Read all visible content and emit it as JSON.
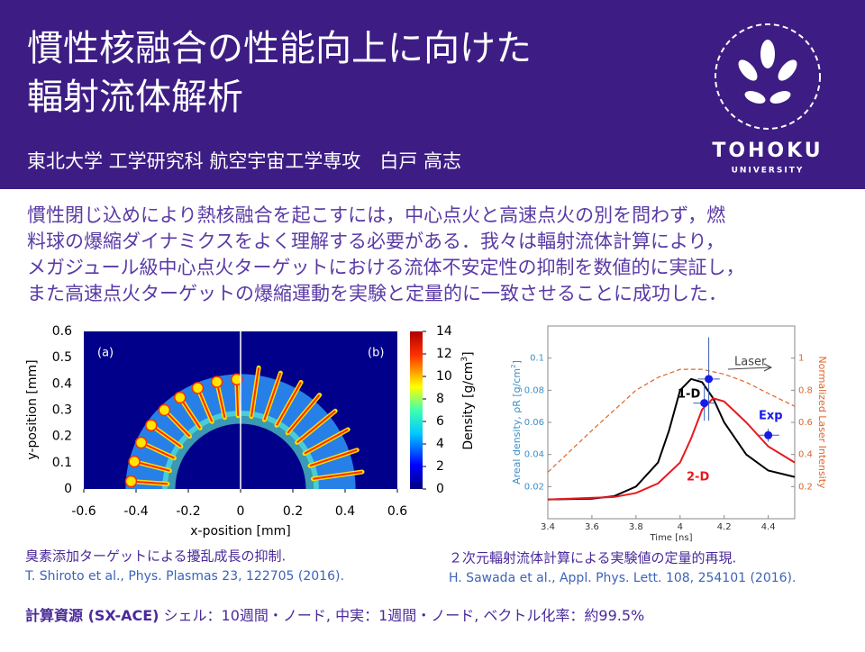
{
  "header": {
    "title_lines": [
      "慣性核融合の性能向上に向けた",
      "輻射流体解析"
    ],
    "author": "東北大学 工学研究科 航空宇宙工学専攻　白戸 高志",
    "logo_text": "TOHOKU",
    "logo_subtext": "UNIVERSITY"
  },
  "abstract_lines": [
    "慣性閉じ込めにより熱核融合を起こすには，中心点火と高速点火の別を問わず，燃",
    "料球の爆縮ダイナミクスをよく理解する必要がある．我々は輻射流体計算により，",
    "メガジュール級中心点火ターゲットにおける流体不安定性の抑制を数値的に実証し，",
    "また高速点火ターゲットの爆縮運動を実験と定量的に一致させることに成功した．"
  ],
  "density_map": {
    "panel_labels": [
      "(a)",
      "(b)"
    ],
    "xlabel": "x-position [mm]",
    "ylabel": "y-position [mm]",
    "xlim": [
      -0.6,
      0.6
    ],
    "ylim": [
      0,
      0.6
    ],
    "xticks": [
      -0.6,
      -0.4,
      -0.2,
      0,
      0.2,
      0.4,
      0.6
    ],
    "yticks": [
      0,
      0.1,
      0.2,
      0.3,
      0.4,
      0.5,
      0.6
    ],
    "colorbar": {
      "label": "Density [g/cm",
      "label_sup": "3",
      "label_end": "]",
      "lim": [
        0,
        14
      ],
      "ticks": [
        0,
        2,
        4,
        6,
        8,
        10,
        12,
        14
      ]
    },
    "caption": "臭素添加ターゲットによる擾乱成長の抑制.",
    "citation": "T. Shiroto et al., Phys. Plasmas 23, 122705 (2016)."
  },
  "chart_data": {
    "type": "line",
    "xlabel": "Time [ns]",
    "ylabel": "Areal density, ρR [g/cm",
    "ylabel_sup": "2",
    "ylabel_end": "]",
    "y2label": "Normalized Laser Intensity",
    "xlim": [
      3.4,
      4.52
    ],
    "ylim": [
      0,
      0.12
    ],
    "y2lim": [
      0,
      1.2
    ],
    "xticks": [
      3.4,
      3.6,
      3.8,
      4,
      4.2,
      4.4
    ],
    "yticks": [
      0.02,
      0.04,
      0.06,
      0.08,
      0.1
    ],
    "y2ticks": [
      0.2,
      0.4,
      0.6,
      0.8,
      1
    ],
    "series": [
      {
        "name": "1-D",
        "color": "#000000",
        "x": [
          3.4,
          3.6,
          3.7,
          3.8,
          3.9,
          3.95,
          4.0,
          4.05,
          4.1,
          4.15,
          4.2,
          4.3,
          4.4,
          4.52
        ],
        "values": [
          0.012,
          0.0125,
          0.014,
          0.02,
          0.035,
          0.055,
          0.08,
          0.087,
          0.085,
          0.075,
          0.06,
          0.04,
          0.03,
          0.026
        ]
      },
      {
        "name": "2-D",
        "color": "#e8191f",
        "x": [
          3.4,
          3.7,
          3.8,
          3.9,
          4.0,
          4.05,
          4.1,
          4.15,
          4.2,
          4.3,
          4.4,
          4.52
        ],
        "values": [
          0.012,
          0.0135,
          0.016,
          0.022,
          0.035,
          0.05,
          0.068,
          0.075,
          0.073,
          0.06,
          0.045,
          0.035
        ]
      },
      {
        "name": "Laser",
        "color": "#e0642a",
        "axis": "y2",
        "dashed": true,
        "x": [
          3.4,
          3.6,
          3.8,
          3.9,
          4.0,
          4.1,
          4.2,
          4.3,
          4.4,
          4.52
        ],
        "values": [
          0.29,
          0.55,
          0.8,
          0.88,
          0.93,
          0.93,
          0.9,
          0.85,
          0.78,
          0.7
        ]
      },
      {
        "name": "Exp",
        "color": "#1a1ae6",
        "points": true,
        "x": [
          4.11,
          4.13,
          4.4
        ],
        "values": [
          0.072,
          0.087,
          0.052
        ],
        "errors": [
          0.011,
          0.026,
          0.004
        ],
        "xerrors": [
          0.05,
          0.05,
          0.05
        ]
      }
    ],
    "caption": "２次元輻射流体計算による実験値の定量的再現.",
    "citation": "H. Sawada et al., Appl. Phys. Lett. 108, 254101 (2016)."
  },
  "footer": {
    "bold": "計算資源 (SX-ACE)",
    "text": " シェル：10週間・ノード,  中実：1週間・ノード,  ベクトル化率：約99.5%"
  }
}
